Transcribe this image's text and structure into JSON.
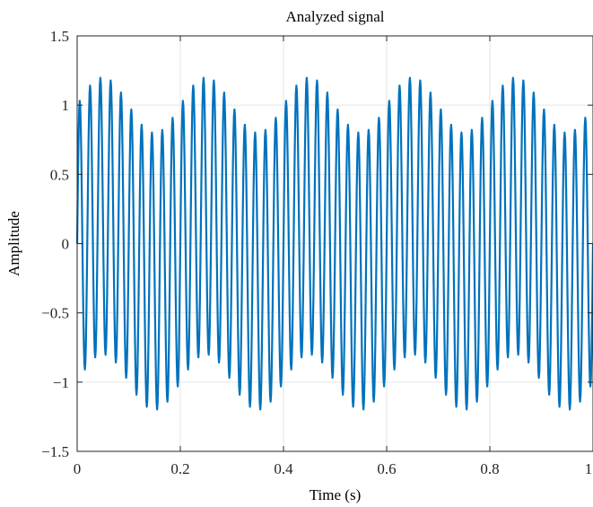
{
  "chart_data": {
    "type": "line",
    "title": "Analyzed signal",
    "xlabel": "Time (s)",
    "ylabel": "Amplitude",
    "xlim": [
      0,
      1
    ],
    "ylim": [
      -1.5,
      1.5
    ],
    "grid": true,
    "x_ticks": [
      {
        "value": 0,
        "label": "0"
      },
      {
        "value": 0.2,
        "label": "0.2"
      },
      {
        "value": 0.4,
        "label": "0.4"
      },
      {
        "value": 0.6,
        "label": "0.6"
      },
      {
        "value": 0.8,
        "label": "0.8"
      },
      {
        "value": 1,
        "label": "1"
      }
    ],
    "y_ticks": [
      {
        "value": 1.5,
        "label": "1.5"
      },
      {
        "value": 1,
        "label": "1"
      },
      {
        "value": 0.5,
        "label": "0.5"
      },
      {
        "value": 0,
        "label": "0"
      },
      {
        "value": -0.5,
        "label": "−0.5"
      },
      {
        "value": -1,
        "label": "−1"
      },
      {
        "value": -1.5,
        "label": "−1.5"
      }
    ],
    "series": [
      {
        "color": "#0072BD",
        "components": [
          {
            "amplitude": 1.0,
            "frequency_hz": 50
          },
          {
            "amplitude": 0.2,
            "frequency_hz": 5
          }
        ],
        "sample_count": 1000,
        "x_range": [
          0,
          1
        ]
      }
    ]
  },
  "colors": {
    "axis": "#262626",
    "grid": "#e6e6e6",
    "background": "#ffffff",
    "line": "#0072BD"
  }
}
